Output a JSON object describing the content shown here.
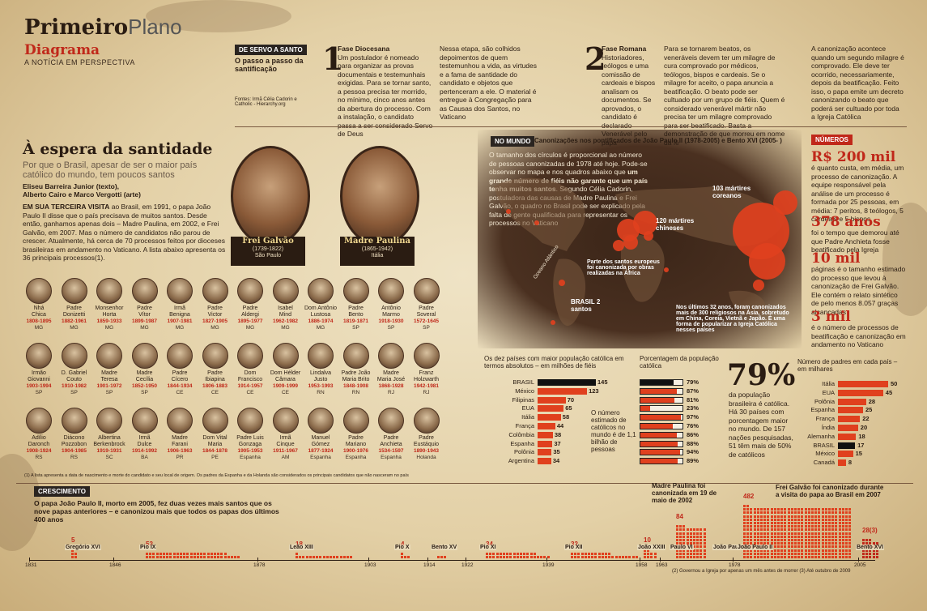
{
  "brand": {
    "bold": "Primeiro",
    "light": "Plano",
    "section": "Diagrama",
    "tagline": "A NOTÍCIA EM PERSPECTIVA"
  },
  "steps": {
    "header": "DE SERVO A SANTO",
    "subheader": "O passo a passo da santificação",
    "sources": "Fontes: Irmã Célia Cadorin e Catholic - Hierarchy.org",
    "s1_num": "1",
    "s1_title": "Fase Diocesana",
    "s1_text": "Um postulador é nomeado para organizar as provas documentais e testemunhais exigidas. Para se tornar santo, a pessoa precisa ter morrido, no mínimo, cinco anos antes da abertura do processo. Com a instalação, o candidato passa a ser considerado Servo de Deus",
    "s1b_text": "Nessa etapa, são colhidos depoimentos de quem testemunhou a vida, as virtudes e a fama de santidade do candidato e objetos que pertenceram a ele. O material é entregue à Congregação para as Causas dos Santos, no Vaticano",
    "s2_num": "2",
    "s2_title": "Fase Romana",
    "s2_text": "Historiadores, teólogos e uma comissão de cardeais e bispos analisam os documentos. Se aprovados, o candidato é declarado Venerável pelo papa",
    "s3_text": "Para se tornarem beatos, os veneráveis devem ter um milagre de cura comprovado por médicos, teólogos, bispos e cardeais. Se o milagre for aceito, o papa anuncia a beatificação. O beato pode ser cultuado por um grupo de fiéis. Quem é considerado venerável mártir não precisa ter um milagre comprovado para ser beatificado. Basta a demonstração de que morreu em nome da fé",
    "s4_text": "A canonização acontece quando um segundo milagre é comprovado. Ele deve ter ocorrido, necessariamente, depois da beatificação. Feito isso, o papa emite um decreto canonizando o beato que poderá ser cultuado por toda a Igreja Católica"
  },
  "article": {
    "title": "À espera da santidade",
    "subtitle": "Por que o Brasil, apesar de ser o maior país católico do mundo, tem poucos santos",
    "byline1": "Eliseu Barreira Junior (texto),",
    "byline2": "Alberto Cairo e Marco Vergotti (arte)",
    "lead": "EM SUA TERCEIRA VISITA",
    "body": " ao Brasil, em 1991, o papa João Paulo II disse que o país precisava de muitos santos. Desde então, ganhamos apenas dois – Madre Paulina, em 2002, e Frei Galvão, em 2007. Mas o número de candidatos não parou de crescer. Atualmente, há cerca de 70 processos feitos por dioceses brasileiras em andamento no Vaticano. A lista abaixo apresenta os 36 principais processos(1)."
  },
  "saints": [
    {
      "name": "Frei Galvão",
      "dates": "(1739-1822)",
      "place": "São Paulo"
    },
    {
      "name": "Madre Paulina",
      "dates": "(1865-1942)",
      "place": "Itália"
    }
  ],
  "candidates": [
    {
      "n1": "Nhá",
      "n2": "Chica",
      "d": "1808-1895",
      "s": "MG"
    },
    {
      "n1": "Padre",
      "n2": "Donizetti",
      "d": "1882-1961",
      "s": "MG"
    },
    {
      "n1": "Monsenhor",
      "n2": "Horta",
      "d": "1859-1933",
      "s": "MG"
    },
    {
      "n1": "Padre",
      "n2": "Vítor",
      "d": "1899-1987",
      "s": "MG"
    },
    {
      "n1": "Irmã",
      "n2": "Benigna",
      "d": "1907-1981",
      "s": "MG"
    },
    {
      "n1": "Padre",
      "n2": "Victor",
      "d": "1827-1905",
      "s": "MG"
    },
    {
      "n1": "Padre",
      "n2": "Aldergi",
      "d": "1895-1977",
      "s": "MG"
    },
    {
      "n1": "Isabel",
      "n2": "Mind",
      "d": "1962-1982",
      "s": "MG"
    },
    {
      "n1": "Dom Antônio",
      "n2": "Lustosa",
      "d": "1886-1974",
      "s": "MG"
    },
    {
      "n1": "Padre",
      "n2": "Bento",
      "d": "1819-1871",
      "s": "SP"
    },
    {
      "n1": "Antônio",
      "n2": "Marmo",
      "d": "1918-1930",
      "s": "SP"
    },
    {
      "n1": "Padre",
      "n2": "Soveral",
      "d": "1572-1645",
      "s": "SP"
    },
    {
      "n1": "Irmão",
      "n2": "Giovanni",
      "d": "1903-1994",
      "s": "SP"
    },
    {
      "n1": "D. Gabriel",
      "n2": "Couto",
      "d": "1910-1982",
      "s": "SP"
    },
    {
      "n1": "Madre",
      "n2": "Teresa",
      "d": "1901-1972",
      "s": "SP"
    },
    {
      "n1": "Madre",
      "n2": "Cecília",
      "d": "1852-1950",
      "s": "SP"
    },
    {
      "n1": "Padre",
      "n2": "Cícero",
      "d": "1844-1934",
      "s": "CE"
    },
    {
      "n1": "Padre",
      "n2": "Ibiapina",
      "d": "1806-1883",
      "s": "CE"
    },
    {
      "n1": "Dom",
      "n2": "Francisco",
      "d": "1914-1957",
      "s": "CE"
    },
    {
      "n1": "Dom Hélder",
      "n2": "Câmara",
      "d": "1909-1999",
      "s": "CE"
    },
    {
      "n1": "Lindalva",
      "n2": "Justo",
      "d": "1953-1993",
      "s": "RN"
    },
    {
      "n1": "Padre João",
      "n2": "Maria Brito",
      "d": "1848-1908",
      "s": "RN"
    },
    {
      "n1": "Madre",
      "n2": "Maria José",
      "d": "1868-1928",
      "s": "RJ"
    },
    {
      "n1": "Franz",
      "n2": "Holzwarth",
      "d": "1942-1981",
      "s": "RJ"
    },
    {
      "n1": "Adílio",
      "n2": "Daronch",
      "d": "1908-1924",
      "s": "RS"
    },
    {
      "n1": "Diácono",
      "n2": "Pozzobon",
      "d": "1904-1985",
      "s": "RS"
    },
    {
      "n1": "Albertina",
      "n2": "Berkenbrock",
      "d": "1919-1931",
      "s": "SC"
    },
    {
      "n1": "Irmã",
      "n2": "Dulce",
      "d": "1914-1992",
      "s": "BA"
    },
    {
      "n1": "Madre",
      "n2": "Farani",
      "d": "1906-1963",
      "s": "PR"
    },
    {
      "n1": "Dom Vital",
      "n2": "Maria",
      "d": "1844-1878",
      "s": "PE"
    },
    {
      "n1": "Padre Luis",
      "n2": "Gonzaga",
      "d": "1905-1953",
      "s": "Espanha"
    },
    {
      "n1": "Irmã",
      "n2": "Cinque",
      "d": "1911-1967",
      "s": "AM"
    },
    {
      "n1": "Manuel",
      "n2": "Gómez",
      "d": "1877-1924",
      "s": "Espanha"
    },
    {
      "n1": "Padre",
      "n2": "Mariano",
      "d": "1900-1976",
      "s": "Espanha"
    },
    {
      "n1": "Padre",
      "n2": "Anchieta",
      "d": "1534-1597",
      "s": "Espanha"
    },
    {
      "n1": "Padre",
      "n2": "Eustáquio",
      "d": "1890-1943",
      "s": "Holanda"
    }
  ],
  "footnote": "(1) A lista apresenta a data de nascimento e morte do candidato e seu local de origem. Os padres da Espanha e da Holanda são considerados os principais candidatos que não nasceram no país",
  "map": {
    "header": "NO MUNDO",
    "title": "Canonizações nos pontificados de João Paulo II (1978-2005) e Bento XVI (2005- )",
    "text_a": "O tamanho dos círculos é proporcional ao número de pessoas canonizadas de 1978 até hoje. Pode-se observar no mapa e nos quadros abaixo que ",
    "text_b": "um grande número de fiéis não garante que um país tenha muitos santos",
    "text_c": ". Segundo Célia Cadorin, postuladora das causas de Madre Paulina e Frei Galvão, o quadro no Brasil pode ser explicado pela falta de gente qualificada para representar os processos no Vaticano",
    "korea": "103 mártires coreanos",
    "china": "120 mártires chineses",
    "brazil": "BRASIL 2 santos",
    "africa": "Parte dos santos europeus foi canonizada por obras realizadas na África",
    "ocean": "Oceano Atlântico",
    "asia_note": "Nos últimos 32 anos, foram canonizados mais de 300 religiosos na Ásia, sobretudo em China, Coreia, Vietnã e Japão. É uma forma de popularizar a Igreja Católica nesses países"
  },
  "numbers": {
    "header": "NÚMEROS",
    "n1": "R$ 200 mil",
    "t1": "é quanto custa, em média, um processo de canonização. A equipe responsável pela análise de um processo é formada por 25 pessoas, em média: 7 peritos, 8 teólogos, 5 cardeais e 5 bispos",
    "n2": "378 anos",
    "t2": "foi o tempo que demorou até que Padre Anchieta fosse beatificado pela Igreja",
    "n3": "10 mil",
    "t3": "páginas é o tamanho estimado do processo que levou à canonização de Frei Galvão. Ele contém o relato sintético de pelo menos 8.057 graças alcançadas",
    "n4": "3 mil",
    "t4": "é o número de processos de beatificação e canonização em andamento no Vaticano"
  },
  "chart_data": [
    {
      "type": "bar",
      "title": "Os dez países com maior população católica em termos absolutos – em milhões de fiéis",
      "categories": [
        "BRASIL",
        "México",
        "Filipinas",
        "EUA",
        "Itália",
        "França",
        "Colômbia",
        "Espanha",
        "Polônia",
        "Argentina"
      ],
      "values": [
        145,
        123,
        70,
        65,
        58,
        44,
        38,
        37,
        35,
        34
      ],
      "note": "O número estimado de católicos no mundo é de 1,1 bilhão de pessoas"
    },
    {
      "type": "bar",
      "title": "Porcentagem da população católica",
      "categories": [
        "BRASIL",
        "México",
        "Filipinas",
        "EUA",
        "Itália",
        "França",
        "Colômbia",
        "Espanha",
        "Polônia",
        "Argentina"
      ],
      "values": [
        79,
        87,
        81,
        23,
        97,
        76,
        86,
        88,
        94,
        89
      ],
      "big": "79%",
      "big_text": "da população brasileira é católica. Há 30 países com porcentagem maior no mundo. De 157 nações pesquisadas, 51 têm mais de 50% de católicos"
    },
    {
      "type": "bar",
      "title": "Número de padres em cada país – em milhares",
      "categories": [
        "Itália",
        "EUA",
        "Polônia",
        "Espanha",
        "França",
        "Índia",
        "Alemanha",
        "BRASIL",
        "México",
        "Canadá"
      ],
      "values": [
        50,
        45,
        28,
        25,
        22,
        20,
        18,
        17,
        15,
        8
      ]
    },
    {
      "type": "bar",
      "title": "CRESCIMENTO",
      "categories": [
        "Gregório XVI",
        "Pio IX",
        "Leão XIII",
        "Pio X",
        "Bento XV",
        "Pio XI",
        "Pio XII",
        "João XXIII",
        "Paulo VI",
        "João Paulo I(2)",
        "João Paulo II",
        "Bento XVI"
      ],
      "values": [
        5,
        52,
        18,
        4,
        3,
        34,
        32,
        10,
        84,
        0,
        482,
        28
      ],
      "years": [
        "1831",
        "1846",
        "1878",
        "1903",
        "1914",
        "1922",
        "1939",
        "1958",
        "1963",
        "1978",
        "2005"
      ],
      "note_jp2": "Madre Paulina foi canonizada em 19 de maio de 2002",
      "note_b16": "Frei Galvão foi canonizado durante a visita do papa ao Brasil em 2007",
      "footnote": "(2) Governou a Igreja por apenas um mês antes de morrer (3) Até outubro de 2009"
    }
  ],
  "growth": {
    "header": "CRESCIMENTO",
    "text": "O papa João Paulo II, morto em 2005, fez duas vezes mais santos que os nove papas anteriores – e canonizou mais que todos os papas dos últimos 400 anos",
    "b16_label": "28(3)"
  }
}
